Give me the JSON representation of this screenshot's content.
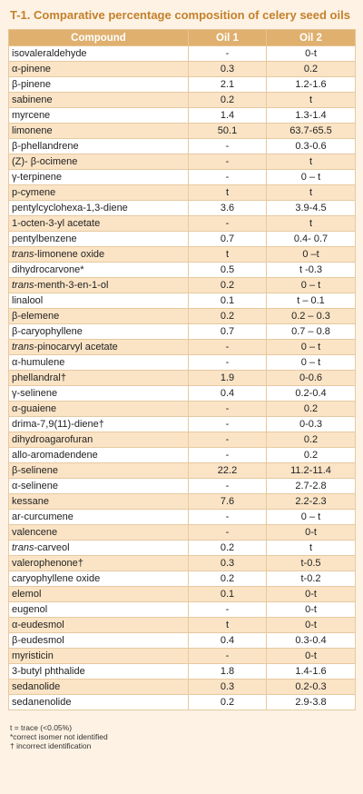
{
  "title": "T-1. Comparative percentage composition of celery seed oils",
  "headers": [
    "Compound",
    "Oil 1",
    "Oil 2"
  ],
  "rows": [
    {
      "prefix": "",
      "name": "isovaleraldehyde",
      "oil1": "-",
      "oil2": "0-t"
    },
    {
      "prefix": "",
      "name": "α-pinene",
      "oil1": "0.3",
      "oil2": "0.2"
    },
    {
      "prefix": "",
      "name": "β-pinene",
      "oil1": "2.1",
      "oil2": "1.2-1.6"
    },
    {
      "prefix": "",
      "name": "sabinene",
      "oil1": "0.2",
      "oil2": "t"
    },
    {
      "prefix": "",
      "name": "myrcene",
      "oil1": "1.4",
      "oil2": "1.3-1.4"
    },
    {
      "prefix": "",
      "name": "limonene",
      "oil1": "50.1",
      "oil2": "63.7-65.5"
    },
    {
      "prefix": "",
      "name": "β-phellandrene",
      "oil1": "-",
      "oil2": "0.3-0.6"
    },
    {
      "prefix": "",
      "name": "(Z)- β-ocimene",
      "oil1": "-",
      "oil2": "t"
    },
    {
      "prefix": "",
      "name": "γ-terpinene",
      "oil1": "-",
      "oil2": "0 – t"
    },
    {
      "prefix": "",
      "name": "p-cymene",
      "oil1": "t",
      "oil2": "t"
    },
    {
      "prefix": "",
      "name": "pentylcyclohexa-1,3-diene",
      "oil1": "3.6",
      "oil2": "3.9-4.5"
    },
    {
      "prefix": "",
      "name": "1-octen-3-yl acetate",
      "oil1": "-",
      "oil2": "t"
    },
    {
      "prefix": "",
      "name": "pentylbenzene",
      "oil1": "0.7",
      "oil2": "0.4- 0.7"
    },
    {
      "prefix": "trans",
      "name": "-limonene oxide",
      "oil1": "t",
      "oil2": "0 –t"
    },
    {
      "prefix": "",
      "name": "dihydrocarvone*",
      "oil1": "0.5",
      "oil2": "t -0.3"
    },
    {
      "prefix": "trans",
      "name": "-menth-3-en-1-ol",
      "oil1": "0.2",
      "oil2": "0 – t"
    },
    {
      "prefix": "",
      "name": "linalool",
      "oil1": "0.1",
      "oil2": "t – 0.1"
    },
    {
      "prefix": "",
      "name": "β-elemene",
      "oil1": "0.2",
      "oil2": "0.2 – 0.3"
    },
    {
      "prefix": "",
      "name": "β-caryophyllene",
      "oil1": "0.7",
      "oil2": "0.7 – 0.8"
    },
    {
      "prefix": "trans",
      "name": "-pinocarvyl acetate",
      "oil1": "-",
      "oil2": "0 – t"
    },
    {
      "prefix": "",
      "name": "α-humulene",
      "oil1": "-",
      "oil2": "0 – t"
    },
    {
      "prefix": "",
      "name": "phellandral†",
      "oil1": "1.9",
      "oil2": "0-0.6"
    },
    {
      "prefix": "",
      "name": "γ-selinene",
      "oil1": "0.4",
      "oil2": "0.2-0.4"
    },
    {
      "prefix": "",
      "name": "α-guaiene",
      "oil1": "-",
      "oil2": "0.2"
    },
    {
      "prefix": "",
      "name": "drima-7,9(11)-diene†",
      "oil1": "-",
      "oil2": "0-0.3"
    },
    {
      "prefix": "",
      "name": "dihydroagarofuran",
      "oil1": "-",
      "oil2": "0.2"
    },
    {
      "prefix": "",
      "name": "allo-aromadendene",
      "oil1": "-",
      "oil2": "0.2"
    },
    {
      "prefix": "",
      "name": "β-selinene",
      "oil1": "22.2",
      "oil2": "11.2-11.4"
    },
    {
      "prefix": "",
      "name": "α-selinene",
      "oil1": "-",
      "oil2": "2.7-2.8"
    },
    {
      "prefix": "",
      "name": "kessane",
      "oil1": "7.6",
      "oil2": "2.2-2.3"
    },
    {
      "prefix": "",
      "name": "ar-curcumene",
      "oil1": "-",
      "oil2": "0 – t"
    },
    {
      "prefix": "",
      "name": "valencene",
      "oil1": "-",
      "oil2": "0-t"
    },
    {
      "prefix": "trans",
      "name": "-carveol",
      "oil1": "0.2",
      "oil2": "t"
    },
    {
      "prefix": "",
      "name": "valerophenone†",
      "oil1": "0.3",
      "oil2": "t-0.5"
    },
    {
      "prefix": "",
      "name": "caryophyllene oxide",
      "oil1": "0.2",
      "oil2": "t-0.2"
    },
    {
      "prefix": "",
      "name": "elemol",
      "oil1": "0.1",
      "oil2": "0-t"
    },
    {
      "prefix": "",
      "name": "eugenol",
      "oil1": "-",
      "oil2": "0-t"
    },
    {
      "prefix": "",
      "name": "α-eudesmol",
      "oil1": "t",
      "oil2": "0-t"
    },
    {
      "prefix": "",
      "name": "β-eudesmol",
      "oil1": "0.4",
      "oil2": "0.3-0.4"
    },
    {
      "prefix": "",
      "name": "myristicin",
      "oil1": "-",
      "oil2": "0-t"
    },
    {
      "prefix": "",
      "name": "3-butyl phthalide",
      "oil1": "1.8",
      "oil2": "1.4-1.6"
    },
    {
      "prefix": "",
      "name": "sedanolide",
      "oil1": "0.3",
      "oil2": "0.2-0.3"
    },
    {
      "prefix": "",
      "name": "sedanenolide",
      "oil1": "0.2",
      "oil2": "2.9-3.8"
    }
  ],
  "footnotes": [
    "t = trace (<0.05%)",
    "*correct isomer not identified",
    "† incorrect identification"
  ],
  "colors": {
    "title": "#c4812c",
    "header_bg": "#e0b06f",
    "row_alt": "#fbe4c6",
    "page_bg": "#fdf2e4"
  }
}
